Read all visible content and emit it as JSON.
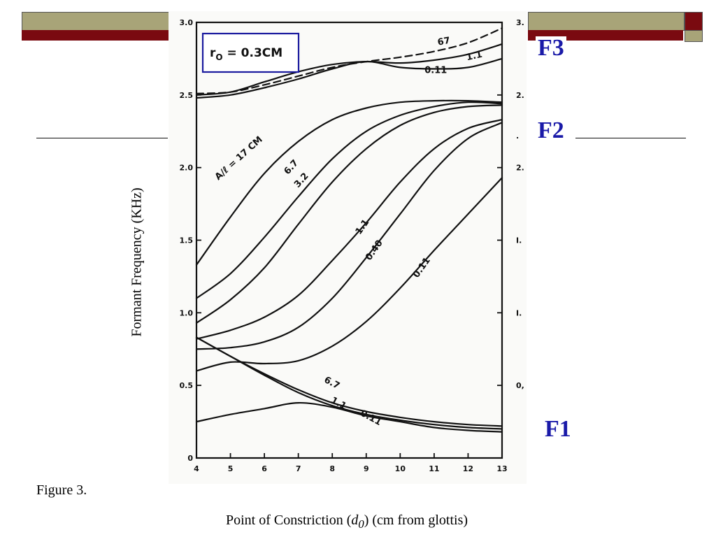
{
  "slide": {
    "caption": "Figure 3.",
    "ylabel": "Formant Frequency (KHz)",
    "xlabel_pre": "Point of Constriction (",
    "xlabel_var": "d",
    "xlabel_sub": "0",
    "xlabel_post": ") (cm from glottis)",
    "formant_labels": [
      "F3",
      "F2",
      "F1"
    ],
    "colors": {
      "olive": "#a8a478",
      "maroon": "#7a0a10",
      "formant_blue": "#1a1aa8",
      "box_blue": "#1a1a9e",
      "ink": "#111111"
    }
  },
  "chart_data": {
    "type": "line",
    "annotation_box": {
      "r": "r",
      "sub": "O",
      "rest": " = 0.3CM"
    },
    "xlim": [
      4,
      13
    ],
    "ylim": [
      0,
      3.0
    ],
    "x_ticks": [
      "4",
      "5",
      "6",
      "7",
      "8",
      "9",
      "10",
      "11",
      "12",
      "13"
    ],
    "y_ticks": [
      "0",
      "0.5",
      "1.0",
      "1.5",
      "2.0",
      "2.5",
      "3.0"
    ],
    "right_ticks": [
      "3.",
      "2.",
      ".",
      "2.",
      "I.",
      "I.",
      "0,"
    ],
    "series": [
      {
        "name": "F3 67",
        "formant": "F3",
        "dashed": true,
        "x": [
          4,
          5,
          6,
          7,
          8,
          9,
          10,
          11,
          12,
          13
        ],
        "y": [
          2.51,
          2.52,
          2.57,
          2.63,
          2.69,
          2.73,
          2.76,
          2.8,
          2.86,
          2.96
        ]
      },
      {
        "name": "F3 1.1",
        "formant": "F3",
        "dashed": false,
        "x": [
          4,
          5,
          6,
          7,
          8,
          9,
          10,
          11,
          12,
          13
        ],
        "y": [
          2.5,
          2.52,
          2.59,
          2.66,
          2.71,
          2.73,
          2.72,
          2.74,
          2.78,
          2.85
        ]
      },
      {
        "name": "F3 0.11",
        "formant": "F3",
        "dashed": false,
        "x": [
          4,
          5,
          6,
          7,
          8,
          9,
          10,
          11,
          12,
          13
        ],
        "y": [
          2.48,
          2.5,
          2.55,
          2.61,
          2.68,
          2.73,
          2.69,
          2.68,
          2.69,
          2.75
        ]
      },
      {
        "name": "Al = 17 CM",
        "formant": "F2",
        "dashed": false,
        "x": [
          4,
          5,
          6,
          7,
          8,
          9,
          10,
          11,
          12,
          13
        ],
        "y": [
          1.33,
          1.66,
          1.96,
          2.18,
          2.33,
          2.41,
          2.45,
          2.46,
          2.46,
          2.45
        ]
      },
      {
        "name": "6.7",
        "formant": "F2",
        "dashed": false,
        "x": [
          4,
          5,
          6,
          7,
          8,
          9,
          10,
          11,
          12,
          13
        ],
        "y": [
          1.1,
          1.27,
          1.52,
          1.8,
          2.06,
          2.25,
          2.36,
          2.42,
          2.45,
          2.44
        ]
      },
      {
        "name": "3.2",
        "formant": "F2",
        "dashed": false,
        "x": [
          4,
          5,
          6,
          7,
          8,
          9,
          10,
          11,
          12,
          13
        ],
        "y": [
          0.93,
          1.09,
          1.31,
          1.61,
          1.9,
          2.13,
          2.29,
          2.38,
          2.42,
          2.43
        ]
      },
      {
        "name": "1.1",
        "formant": "F2",
        "dashed": false,
        "x": [
          4,
          5,
          6,
          7,
          8,
          9,
          10,
          11,
          12,
          13
        ],
        "y": [
          0.82,
          0.88,
          0.97,
          1.12,
          1.36,
          1.62,
          1.9,
          2.13,
          2.27,
          2.33
        ]
      },
      {
        "name": "0.40",
        "formant": "F2",
        "dashed": false,
        "x": [
          4,
          5,
          6,
          7,
          8,
          9,
          10,
          11,
          12,
          13
        ],
        "y": [
          0.75,
          0.76,
          0.8,
          0.9,
          1.1,
          1.38,
          1.68,
          1.98,
          2.2,
          2.31
        ]
      },
      {
        "name": "0.11",
        "formant": "F2",
        "dashed": false,
        "x": [
          4,
          5,
          6,
          7,
          8,
          9,
          10,
          11,
          12,
          13
        ],
        "y": [
          0.6,
          0.66,
          0.65,
          0.67,
          0.77,
          0.94,
          1.17,
          1.43,
          1.68,
          1.93
        ]
      },
      {
        "name": "F1 6.7",
        "formant": "F1",
        "dashed": false,
        "x": [
          4,
          5,
          6,
          7,
          8,
          9,
          10,
          11,
          12,
          13
        ],
        "y": [
          0.83,
          0.7,
          0.58,
          0.47,
          0.38,
          0.32,
          0.28,
          0.25,
          0.23,
          0.22
        ]
      },
      {
        "name": "F1 1.1",
        "formant": "F1",
        "dashed": false,
        "x": [
          4,
          5,
          6,
          7,
          8,
          9,
          10,
          11,
          12,
          13
        ],
        "y": [
          0.83,
          0.7,
          0.57,
          0.45,
          0.36,
          0.3,
          0.26,
          0.23,
          0.21,
          0.2
        ]
      },
      {
        "name": "F1 0.11",
        "formant": "F1",
        "dashed": false,
        "x": [
          4,
          5,
          6,
          7,
          8,
          9,
          10,
          11,
          12,
          13
        ],
        "y": [
          0.25,
          0.3,
          0.34,
          0.38,
          0.35,
          0.29,
          0.25,
          0.21,
          0.19,
          0.18
        ]
      }
    ],
    "curve_labels": [
      {
        "text": "67",
        "x": 11.3,
        "y": 2.85,
        "rot": -10
      },
      {
        "text": "1.1",
        "x": 12.2,
        "y": 2.75,
        "rot": -12
      },
      {
        "text": "0.11",
        "x": 11.05,
        "y": 2.65,
        "rot": 0
      },
      {
        "text": "A/ℓ = 17 CM",
        "x": 5.3,
        "y": 2.05,
        "rot": -42
      },
      {
        "text": "6.7",
        "x": 6.85,
        "y": 1.99,
        "rot": -48
      },
      {
        "text": "3.2",
        "x": 7.15,
        "y": 1.9,
        "rot": -48
      },
      {
        "text": "1.1",
        "x": 8.95,
        "y": 1.58,
        "rot": -55
      },
      {
        "text": "0.40",
        "x": 9.3,
        "y": 1.42,
        "rot": -55
      },
      {
        "text": "0.11",
        "x": 10.7,
        "y": 1.3,
        "rot": -55
      },
      {
        "text": "6.7",
        "x": 7.95,
        "y": 0.5,
        "rot": 28
      },
      {
        "text": "1.1",
        "x": 8.15,
        "y": 0.36,
        "rot": 28
      },
      {
        "text": "0.11",
        "x": 9.1,
        "y": 0.26,
        "rot": 28
      }
    ]
  }
}
